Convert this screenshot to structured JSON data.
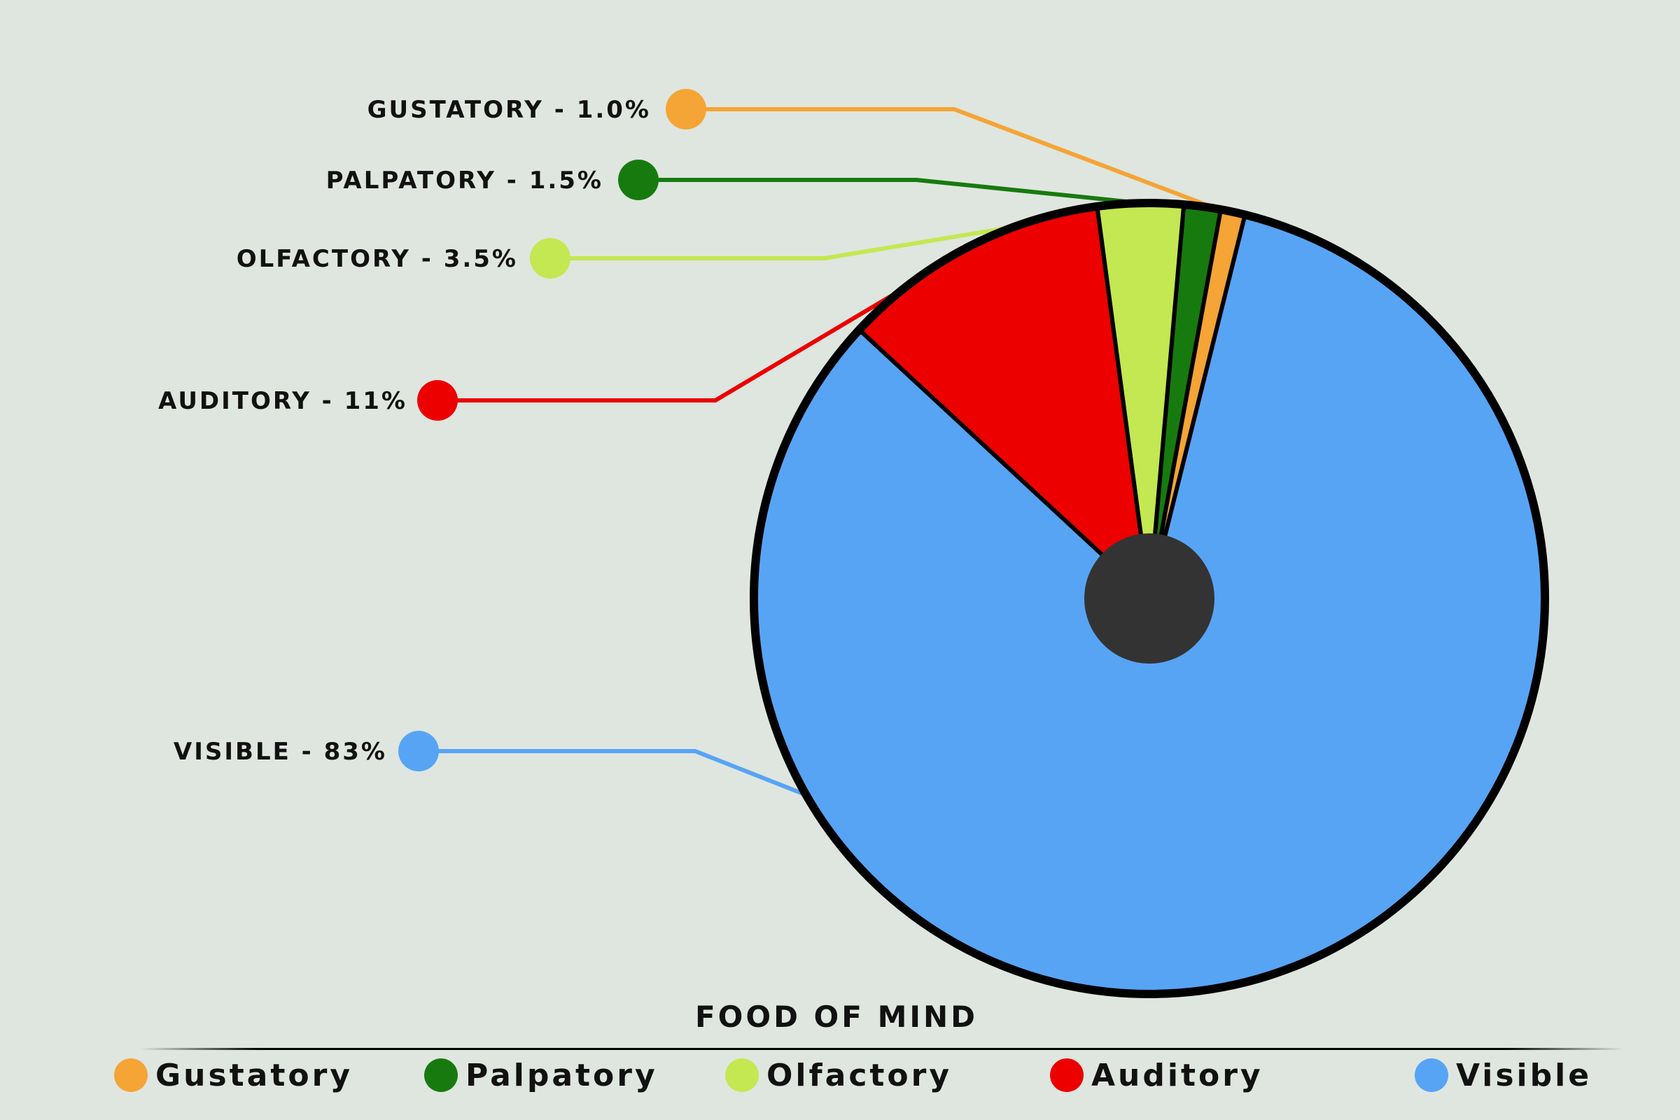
{
  "chart_data": {
    "type": "pie",
    "title": "FOOD OF MIND",
    "legend_position": "bottom",
    "slices": [
      {
        "name": "Gustatory",
        "value": 1.0,
        "callout": "GUSTATORY - 1.0%",
        "color": "#f5a436"
      },
      {
        "name": "Palpatory",
        "value": 1.5,
        "callout": "PALPATORY - 1.5%",
        "color": "#177a0f"
      },
      {
        "name": "Olfactory",
        "value": 3.5,
        "callout": "OLFACTORY - 3.5%",
        "color": "#c3e851"
      },
      {
        "name": "Auditory",
        "value": 11,
        "callout": "AUDITORY - 11%",
        "color": "#ec0000"
      },
      {
        "name": "Visible",
        "value": 83,
        "callout": "VISIBLE - 83%",
        "color": "#57a4f5"
      }
    ],
    "center_hole_color": "#333333",
    "outline_color": "#000000"
  }
}
